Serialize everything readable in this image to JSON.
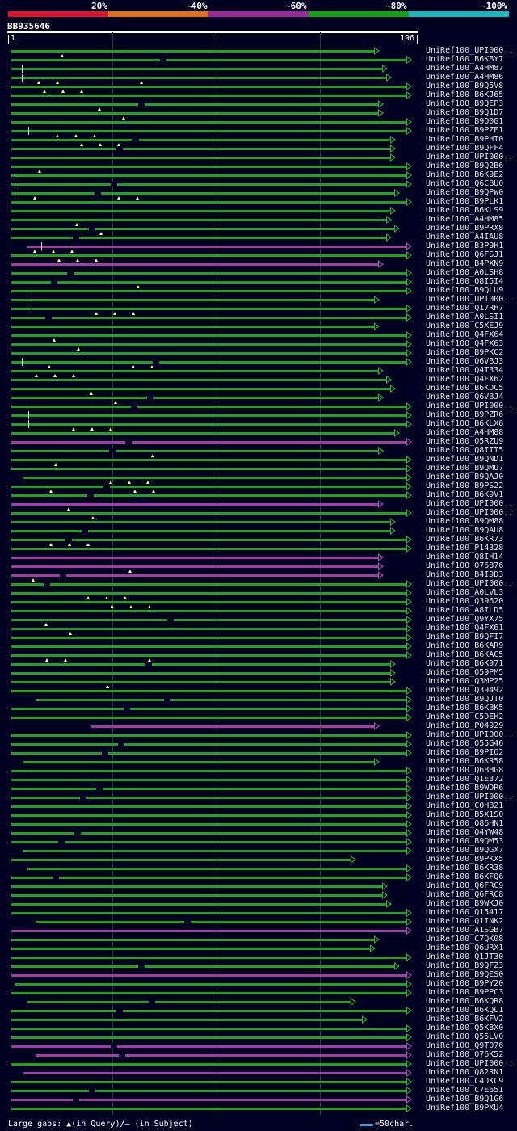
{
  "scale": {
    "labels": [
      "20%",
      "~40%",
      "~60%",
      "~80%",
      "~100%"
    ],
    "colors": [
      "#e0142c",
      "#e0701a",
      "#9a2a9a",
      "#16a016",
      "#16b8c0"
    ]
  },
  "query": {
    "name": "BB935646",
    "start": "1",
    "end": "196"
  },
  "legend": {
    "text": "Large gaps: ▲(in Query)/– (in Subject)",
    "scale_text": "=50char."
  },
  "hits": [
    {
      "label": "UniRef100_UPI000..",
      "color": "green",
      "end": 0.92,
      "start": 0.0
    },
    {
      "label": "UniRef100_B6KBY7",
      "color": "green",
      "end": 1.0,
      "start": 0.0
    },
    {
      "label": "UniRef100_A4HM87",
      "color": "green",
      "end": 0.94,
      "start": 0.0
    },
    {
      "label": "UniRef100_A4HM86",
      "color": "green",
      "end": 0.95,
      "start": 0.0
    },
    {
      "label": "UniRef100_B9Q5V8",
      "color": "green",
      "end": 1.0,
      "start": 0.0
    },
    {
      "label": "UniRef100_B6KJ65",
      "color": "green",
      "end": 1.0,
      "start": 0.0
    },
    {
      "label": "UniRef100_B9QEP3",
      "color": "green",
      "end": 0.93,
      "start": 0.0
    },
    {
      "label": "UniRef100_B9Q1D7",
      "color": "green",
      "end": 0.93,
      "start": 0.0
    },
    {
      "label": "UniRef100_B9Q0G1",
      "color": "green",
      "end": 1.0,
      "start": 0.0
    },
    {
      "label": "UniRef100_B9PZE1",
      "color": "green",
      "end": 1.0,
      "start": 0.0
    },
    {
      "label": "UniRef100_B9PHT0",
      "color": "green",
      "end": 0.96,
      "start": 0.0
    },
    {
      "label": "UniRef100_B9QFF4",
      "color": "green",
      "end": 0.96,
      "start": 0.0
    },
    {
      "label": "UniRef100_UPI000..",
      "color": "green",
      "end": 0.96,
      "start": 0.0
    },
    {
      "label": "UniRef100_B9Q2B6",
      "color": "green",
      "end": 1.0,
      "start": 0.0
    },
    {
      "label": "UniRef100_B6K9E2",
      "color": "green",
      "end": 1.0,
      "start": 0.0
    },
    {
      "label": "UniRef100_Q6CBU0",
      "color": "green",
      "end": 1.0,
      "start": 0.0
    },
    {
      "label": "UniRef100_B9QPW0",
      "color": "green",
      "end": 0.97,
      "start": 0.0
    },
    {
      "label": "UniRef100_B9PLK1",
      "color": "green",
      "end": 1.0,
      "start": 0.0
    },
    {
      "label": "UniRef100_B6KLS9",
      "color": "green",
      "end": 0.96,
      "start": 0.0
    },
    {
      "label": "UniRef100_A4HM85",
      "color": "green",
      "end": 0.95,
      "start": 0.0
    },
    {
      "label": "UniRef100_B9PRX8",
      "color": "green",
      "end": 0.97,
      "start": 0.0
    },
    {
      "label": "UniRef100_A4IAU8",
      "color": "green",
      "end": 0.95,
      "start": 0.0
    },
    {
      "label": "UniRef100_B3P9H1",
      "color": "purple",
      "end": 1.0,
      "start": 0.04
    },
    {
      "label": "UniRef100_Q6FSJ1",
      "color": "green",
      "end": 1.0,
      "start": 0.0
    },
    {
      "label": "UniRef100_B4PXN9",
      "color": "purple",
      "end": 0.93,
      "start": 0.0
    },
    {
      "label": "UniRef100_A0LSH8",
      "color": "green",
      "end": 1.0,
      "start": 0.0
    },
    {
      "label": "UniRef100_Q8I5I4",
      "color": "green",
      "end": 1.0,
      "start": 0.0
    },
    {
      "label": "UniRef100_B9QLU9",
      "color": "green",
      "end": 1.0,
      "start": 0.0
    },
    {
      "label": "UniRef100_UPI000..",
      "color": "green",
      "end": 0.92,
      "start": 0.0
    },
    {
      "label": "UniRef100_Q17RH7",
      "color": "green",
      "end": 1.0,
      "start": 0.0
    },
    {
      "label": "UniRef100_A0LSI1",
      "color": "green",
      "end": 1.0,
      "start": 0.0
    },
    {
      "label": "UniRef100_C5XEJ9",
      "color": "green",
      "end": 0.92,
      "start": 0.0
    },
    {
      "label": "UniRef100_Q4FX64",
      "color": "green",
      "end": 1.0,
      "start": 0.0
    },
    {
      "label": "UniRef100_Q4FX63",
      "color": "green",
      "end": 1.0,
      "start": 0.0
    },
    {
      "label": "UniRef100_B9PKC2",
      "color": "green",
      "end": 1.0,
      "start": 0.0
    },
    {
      "label": "UniRef100_Q6VBJ3",
      "color": "green",
      "end": 1.0,
      "start": 0.0
    },
    {
      "label": "UniRef100_Q4T334",
      "color": "green",
      "end": 0.93,
      "start": 0.0
    },
    {
      "label": "UniRef100_Q4FX62",
      "color": "green",
      "end": 0.95,
      "start": 0.0
    },
    {
      "label": "UniRef100_B6KDC5",
      "color": "green",
      "end": 0.96,
      "start": 0.0
    },
    {
      "label": "UniRef100_Q6VBJ4",
      "color": "green",
      "end": 0.93,
      "start": 0.0
    },
    {
      "label": "UniRef100_UPI000..",
      "color": "green",
      "end": 1.0,
      "start": 0.0
    },
    {
      "label": "UniRef100_B9PZR6",
      "color": "green",
      "end": 1.0,
      "start": 0.0
    },
    {
      "label": "UniRef100_B6KLX8",
      "color": "green",
      "end": 1.0,
      "start": 0.0
    },
    {
      "label": "UniRef100_A4HM88",
      "color": "green",
      "end": 0.97,
      "start": 0.0
    },
    {
      "label": "UniRef100_Q5RZU9",
      "color": "purple",
      "end": 1.0,
      "start": 0.0
    },
    {
      "label": "UniRef100_Q8IIT5",
      "color": "green",
      "end": 0.93,
      "start": 0.0
    },
    {
      "label": "UniRef100_B9QND1",
      "color": "green",
      "end": 1.0,
      "start": 0.0
    },
    {
      "label": "UniRef100_B9QMU7",
      "color": "green",
      "end": 1.0,
      "start": 0.0
    },
    {
      "label": "UniRef100_B9QAJ0",
      "color": "green",
      "end": 1.0,
      "start": 0.03
    },
    {
      "label": "UniRef100_B9PS22",
      "color": "green",
      "end": 1.0,
      "start": 0.0
    },
    {
      "label": "UniRef100_B6K9V1",
      "color": "green",
      "end": 1.0,
      "start": 0.0
    },
    {
      "label": "UniRef100_UPI000..",
      "color": "purple",
      "end": 0.93,
      "start": 0.0
    },
    {
      "label": "UniRef100_UPI000..",
      "color": "green",
      "end": 1.0,
      "start": 0.0
    },
    {
      "label": "UniRef100_B9QM88",
      "color": "green",
      "end": 0.96,
      "start": 0.0
    },
    {
      "label": "UniRef100_B9QAU8",
      "color": "green",
      "end": 0.96,
      "start": 0.0
    },
    {
      "label": "UniRef100_B6KR73",
      "color": "green",
      "end": 1.0,
      "start": 0.0
    },
    {
      "label": "UniRef100_P14328",
      "color": "green",
      "end": 1.0,
      "start": 0.0
    },
    {
      "label": "UniRef100_Q8IH14",
      "color": "purple",
      "end": 0.93,
      "start": 0.0
    },
    {
      "label": "UniRef100_O76876",
      "color": "purple",
      "end": 0.93,
      "start": 0.0
    },
    {
      "label": "UniRef100_B4I9D3",
      "color": "purple",
      "end": 0.93,
      "start": 0.0
    },
    {
      "label": "UniRef100_UPI000..",
      "color": "green",
      "end": 1.0,
      "start": 0.0
    },
    {
      "label": "UniRef100_A0LVL3",
      "color": "green",
      "end": 1.0,
      "start": 0.0
    },
    {
      "label": "UniRef100_Q39620",
      "color": "green",
      "end": 1.0,
      "start": 0.0
    },
    {
      "label": "UniRef100_A8ILD5",
      "color": "green",
      "end": 1.0,
      "start": 0.0
    },
    {
      "label": "UniRef100_Q9YX75",
      "color": "green",
      "end": 1.0,
      "start": 0.0
    },
    {
      "label": "UniRef100_Q4FX61",
      "color": "green",
      "end": 1.0,
      "start": 0.0
    },
    {
      "label": "UniRef100_B9QFI7",
      "color": "green",
      "end": 1.0,
      "start": 0.0
    },
    {
      "label": "UniRef100_B6KAR9",
      "color": "green",
      "end": 1.0,
      "start": 0.0
    },
    {
      "label": "UniRef100_B6KAC5",
      "color": "green",
      "end": 1.0,
      "start": 0.0
    },
    {
      "label": "UniRef100_B6K971",
      "color": "green",
      "end": 0.96,
      "start": 0.0
    },
    {
      "label": "UniRef100_Q59PM5",
      "color": "green",
      "end": 0.96,
      "start": 0.0
    },
    {
      "label": "UniRef100_Q3MP25",
      "color": "green",
      "end": 0.96,
      "start": 0.0
    },
    {
      "label": "UniRef100_Q39492",
      "color": "green",
      "end": 1.0,
      "start": 0.0
    },
    {
      "label": "UniRef100_B9QJT0",
      "color": "green",
      "end": 1.0,
      "start": 0.06
    },
    {
      "label": "UniRef100_B6KBK5",
      "color": "green",
      "end": 1.0,
      "start": 0.0
    },
    {
      "label": "UniRef100_C5DEH2",
      "color": "green",
      "end": 1.0,
      "start": 0.0
    },
    {
      "label": "UniRef100_P04929",
      "color": "purple",
      "end": 0.92,
      "start": 0.2
    },
    {
      "label": "UniRef100_UPI000..",
      "color": "green",
      "end": 1.0,
      "start": 0.0
    },
    {
      "label": "UniRef100_Q55G46",
      "color": "green",
      "end": 1.0,
      "start": 0.0
    },
    {
      "label": "UniRef100_B9PIQ2",
      "color": "green",
      "end": 1.0,
      "start": 0.0
    },
    {
      "label": "UniRef100_B6KR58",
      "color": "green",
      "end": 0.92,
      "start": 0.03
    },
    {
      "label": "UniRef100_Q6BHG8",
      "color": "green",
      "end": 1.0,
      "start": 0.0
    },
    {
      "label": "UniRef100_Q1E372",
      "color": "green",
      "end": 1.0,
      "start": 0.0
    },
    {
      "label": "UniRef100_B9WDR6",
      "color": "green",
      "end": 1.0,
      "start": 0.0
    },
    {
      "label": "UniRef100_UPI000..",
      "color": "green",
      "end": 1.0,
      "start": 0.0
    },
    {
      "label": "UniRef100_C0HB21",
      "color": "green",
      "end": 1.0,
      "start": 0.0
    },
    {
      "label": "UniRef100_B5X1S0",
      "color": "green",
      "end": 1.0,
      "start": 0.0
    },
    {
      "label": "UniRef100_Q86HN1",
      "color": "green",
      "end": 1.0,
      "start": 0.0
    },
    {
      "label": "UniRef100_Q4YW48",
      "color": "green",
      "end": 1.0,
      "start": 0.0
    },
    {
      "label": "UniRef100_B9QM53",
      "color": "green",
      "end": 1.0,
      "start": 0.0
    },
    {
      "label": "UniRef100_B9QGX7",
      "color": "green",
      "end": 1.0,
      "start": 0.03
    },
    {
      "label": "UniRef100_B9PKX5",
      "color": "green",
      "end": 0.86,
      "start": 0.0
    },
    {
      "label": "UniRef100_B6KR38",
      "color": "green",
      "end": 1.0,
      "start": 0.04
    },
    {
      "label": "UniRef100_B6KFQ6",
      "color": "green",
      "end": 1.0,
      "start": 0.0
    },
    {
      "label": "UniRef100_Q6FRC9",
      "color": "green",
      "end": 0.94,
      "start": 0.0
    },
    {
      "label": "UniRef100_Q6FRC8",
      "color": "green",
      "end": 0.94,
      "start": 0.0
    },
    {
      "label": "UniRef100_B9WKJ0",
      "color": "green",
      "end": 0.95,
      "start": 0.0
    },
    {
      "label": "UniRef100_Q15417",
      "color": "green",
      "end": 1.0,
      "start": 0.0
    },
    {
      "label": "UniRef100_Q1INK2",
      "color": "green",
      "end": 1.0,
      "start": 0.06
    },
    {
      "label": "UniRef100_A1SGB7",
      "color": "purple",
      "end": 1.0,
      "start": 0.0
    },
    {
      "label": "UniRef100_C7QK08",
      "color": "green",
      "end": 0.92,
      "start": 0.0
    },
    {
      "label": "UniRef100_Q6URX1",
      "color": "green",
      "end": 0.91,
      "start": 0.0
    },
    {
      "label": "UniRef100_Q1JT30",
      "color": "green",
      "end": 1.0,
      "start": 0.0
    },
    {
      "label": "UniRef100_B9QFZ3",
      "color": "green",
      "end": 0.97,
      "start": 0.0
    },
    {
      "label": "UniRef100_B9QES0",
      "color": "purple",
      "end": 1.0,
      "start": 0.0
    },
    {
      "label": "UniRef100_B9PY20",
      "color": "green",
      "end": 1.0,
      "start": 0.01
    },
    {
      "label": "UniRef100_B9PPC3",
      "color": "green",
      "end": 1.0,
      "start": 0.0
    },
    {
      "label": "UniRef100_B6KQR8",
      "color": "green",
      "end": 0.86,
      "start": 0.04
    },
    {
      "label": "UniRef100_B6KQL1",
      "color": "green",
      "end": 1.0,
      "start": 0.0
    },
    {
      "label": "UniRef100_B6KFV2",
      "color": "green",
      "end": 0.89,
      "start": 0.0
    },
    {
      "label": "UniRef100_Q5K8X0",
      "color": "green",
      "end": 1.0,
      "start": 0.0
    },
    {
      "label": "UniRef100_Q55LV0",
      "color": "green",
      "end": 1.0,
      "start": 0.0
    },
    {
      "label": "UniRef100_Q9T076",
      "color": "purple",
      "end": 1.0,
      "start": 0.0
    },
    {
      "label": "UniRef100_Q76K52",
      "color": "purple",
      "end": 1.0,
      "start": 0.06
    },
    {
      "label": "UniRef100_UPI000..",
      "color": "green",
      "end": 1.0,
      "start": 0.0
    },
    {
      "label": "UniRef100_Q82RN1",
      "color": "purple",
      "end": 1.0,
      "start": 0.03
    },
    {
      "label": "UniRef100_C4DKC9",
      "color": "green",
      "end": 1.0,
      "start": 0.0
    },
    {
      "label": "UniRef100_C7E651",
      "color": "green",
      "end": 1.0,
      "start": 0.0
    },
    {
      "label": "UniRef100_B9Q1G6",
      "color": "purple",
      "end": 1.0,
      "start": 0.0
    },
    {
      "label": "UniRef100_B9PXU4",
      "color": "green",
      "end": 1.0,
      "start": 0.0
    }
  ]
}
